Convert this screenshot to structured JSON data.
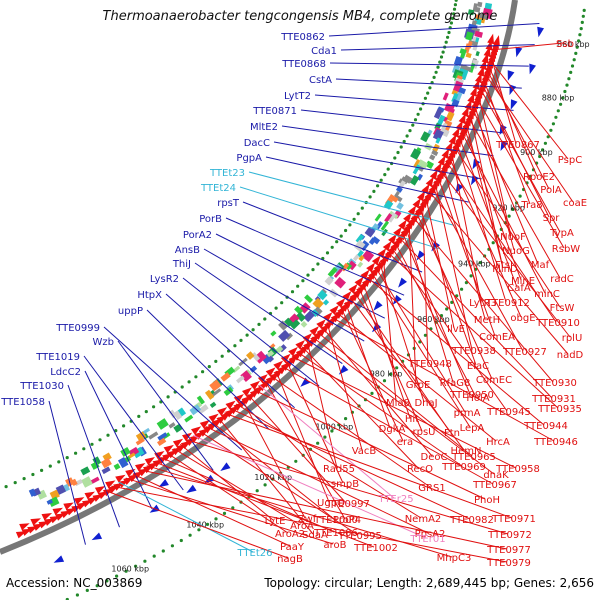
{
  "title": "Thermoanaerobacter tengcongensis MB4, complete genome",
  "footer": {
    "accession": "Accession: NC_003869",
    "stats": "Topology: circular; Length: 2,689,445 bp; Genes: 2,656"
  },
  "colors": {
    "forward_labels": "#1a1aa8",
    "reverse_labels": "#e01010",
    "trna_labels": "#33b5d6",
    "rrna_labels": "#f080c0",
    "backbone": "#777777",
    "tick_dots": "#22882a"
  },
  "kbp_ticks": [
    "860 kbp",
    "880 kbp",
    "900 kbp",
    "920 kbp",
    "940 kbp",
    "960 kbp",
    "980 kbp",
    "1000 kbp",
    "1020 kbp",
    "1040 kbp",
    "1060 kbp"
  ],
  "left_labels": [
    "TTE0862",
    "Cda1",
    "TTE0868",
    "CstA",
    "LytT2",
    "TTE0871",
    "MltE2",
    "DacC",
    "PgpA",
    "TTEt23",
    "TTEt24",
    "rpsT",
    "PorB",
    "PorA2",
    "AnsB",
    "ThiJ",
    "LysR2",
    "HtpX",
    "uppP",
    "TTE0999",
    "Wzb",
    "TTE1019",
    "LdcC2",
    "TTE1030",
    "TTE1058"
  ],
  "right_labels": [
    "Ssb",
    "TTE0867",
    "PspC",
    "RpoE2",
    "PolA",
    "coaE",
    "Tra8",
    "Spr",
    "TypA",
    "NuoF",
    "RsbW",
    "NuoG",
    "Maf",
    "FtsI",
    "radC",
    "MinD",
    "MinE",
    "minC",
    "CafA",
    "TTE0912",
    "FtsW",
    "LytR3",
    "obgE",
    "TTE0910",
    "MetH",
    "rplU",
    "ComEA",
    "TTE0938",
    "TTE0927",
    "nadD",
    "IlvE",
    "TTE0948",
    "ElaC",
    "ComEC",
    "TTE0930",
    "GrpE",
    "RfaG8",
    "TTE0950",
    "TTE0931",
    "HolA",
    "TTE0945",
    "TTE0935",
    "Mia8",
    "DnaJ",
    "prmA",
    "LepA",
    "TTE0944",
    "Hit",
    "rpsU",
    "Ftn",
    "HemN",
    "DgkA",
    "era",
    "HrcA",
    "TTE0946",
    "VacB",
    "DeoC",
    "TTE0965",
    "dnaK",
    "Rad55",
    "RecO",
    "TTE0969",
    "TTE0958",
    "smpB",
    "TTE0967",
    "UgpQ",
    "GRS1",
    "ProP4",
    "TTEr25",
    "PhoH",
    "TTE0997",
    "Zwf",
    "NemA2",
    "TTE0982",
    "TTE0971",
    "SdaA",
    "TTE1000",
    "PpsA2",
    "TTE0995",
    "TTEr01",
    "TTE0972",
    "LytE",
    "AroA",
    "AroA2",
    "TTE1006",
    "TTE1002",
    "MhpC3",
    "TTE0977",
    "PaaY",
    "aroB",
    "TTEt26",
    "TTE0979",
    "nagB"
  ]
}
